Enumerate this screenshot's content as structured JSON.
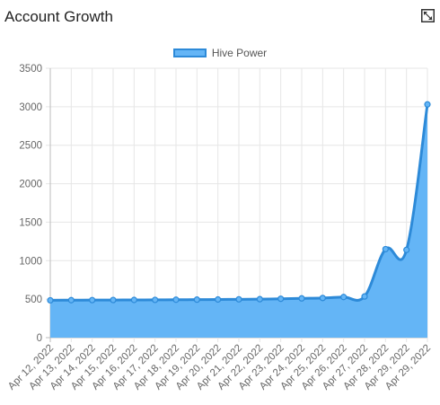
{
  "card": {
    "title": "Account Growth"
  },
  "colors": {
    "fill": "#64b5f6",
    "line": "#2d8ad8",
    "grid": "#e6e6e6",
    "axis": "#bbbbbb"
  },
  "chart_data": {
    "type": "area",
    "title": "",
    "xlabel": "",
    "ylabel": "",
    "ylim": [
      0,
      3500
    ],
    "yticks": [
      0,
      500,
      1000,
      1500,
      2000,
      2500,
      3000,
      3500
    ],
    "grid": true,
    "legend_position": "top",
    "x": [
      "Apr 12, 2022",
      "Apr 13, 2022",
      "Apr 14, 2022",
      "Apr 15, 2022",
      "Apr 16, 2022",
      "Apr 17, 2022",
      "Apr 18, 2022",
      "Apr 19, 2022",
      "Apr 20, 2022",
      "Apr 21, 2022",
      "Apr 22, 2022",
      "Apr 23, 2022",
      "Apr 24, 2022",
      "Apr 25, 2022",
      "Apr 26, 2022",
      "Apr 27, 2022",
      "Apr 28, 2022",
      "Apr 29, 2022",
      "Apr 29, 2022"
    ],
    "series": [
      {
        "name": "Hive Power",
        "values": [
          485,
          487,
          488,
          489,
          490,
          491,
          493,
          494,
          496,
          498,
          500,
          505,
          510,
          515,
          528,
          535,
          1150,
          1140,
          3030
        ]
      }
    ]
  }
}
